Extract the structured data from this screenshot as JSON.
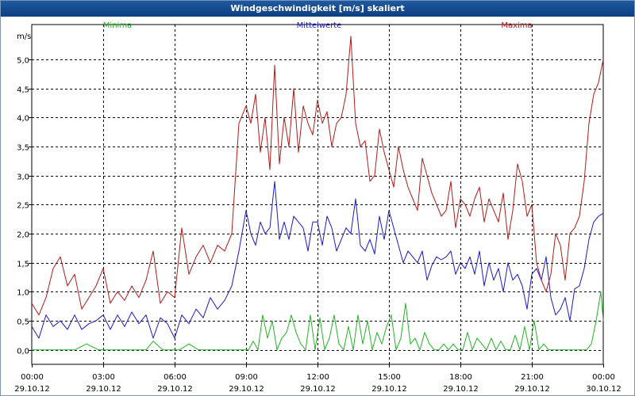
{
  "window": {
    "title": "Windgeschwindigkeit [m/s] skaliert"
  },
  "chart_data": {
    "type": "line",
    "title": "Windgeschwindigkeit [m/s] skaliert",
    "ylabel": "m/s",
    "xlabel": "",
    "ylim": [
      -0.25,
      5.6
    ],
    "xlim": [
      0,
      24
    ],
    "grid": true,
    "y_ticks": [
      {
        "value": 0.0,
        "label": "0,0"
      },
      {
        "value": 0.5,
        "label": "0,5"
      },
      {
        "value": 1.0,
        "label": "1,0"
      },
      {
        "value": 1.5,
        "label": "1,5"
      },
      {
        "value": 2.0,
        "label": "2,0"
      },
      {
        "value": 2.5,
        "label": "2,5"
      },
      {
        "value": 3.0,
        "label": "3,0"
      },
      {
        "value": 3.5,
        "label": "3,5"
      },
      {
        "value": 4.0,
        "label": "4,0"
      },
      {
        "value": 4.5,
        "label": "4,5"
      },
      {
        "value": 5.0,
        "label": "5,0"
      }
    ],
    "x_ticks": [
      {
        "value": 0,
        "time": "00:00",
        "date": "29.10.12"
      },
      {
        "value": 3,
        "time": "03:00",
        "date": "29.10.12"
      },
      {
        "value": 6,
        "time": "06:00",
        "date": "29.10.12"
      },
      {
        "value": 9,
        "time": "09:00",
        "date": "29.10.12"
      },
      {
        "value": 12,
        "time": "12:00",
        "date": "29.10.12"
      },
      {
        "value": 15,
        "time": "15:00",
        "date": "29.10.12"
      },
      {
        "value": 18,
        "time": "18:00",
        "date": "29.10.12"
      },
      {
        "value": 21,
        "time": "21:00",
        "date": "29.10.12"
      },
      {
        "value": 24,
        "time": "00:00",
        "date": "30.10.12"
      }
    ],
    "series": [
      {
        "name": "Minima",
        "color": "#22b422",
        "x": [
          0,
          0.6,
          1.2,
          1.8,
          2.3,
          2.8,
          3.3,
          3.8,
          4.3,
          4.8,
          5.1,
          5.5,
          5.9,
          6.2,
          6.6,
          7.0,
          7.5,
          8.0,
          8.5,
          8.8,
          9.0,
          9.1,
          9.3,
          9.5,
          9.7,
          9.9,
          10.1,
          10.3,
          10.5,
          10.7,
          10.9,
          11.1,
          11.3,
          11.5,
          11.7,
          11.9,
          12.1,
          12.3,
          12.5,
          12.7,
          12.9,
          13.1,
          13.3,
          13.5,
          13.7,
          13.9,
          14.1,
          14.3,
          14.5,
          14.7,
          14.9,
          15.1,
          15.3,
          15.5,
          15.7,
          15.9,
          16.1,
          16.3,
          16.5,
          16.7,
          16.9,
          17.1,
          17.3,
          17.5,
          17.7,
          17.9,
          18.1,
          18.3,
          18.5,
          18.7,
          18.9,
          19.1,
          19.3,
          19.5,
          19.7,
          19.9,
          20.1,
          20.3,
          20.5,
          20.7,
          20.9,
          21.1,
          21.3,
          21.5,
          21.7,
          21.9,
          22.1,
          22.3,
          22.5,
          22.7,
          22.9,
          23.1,
          23.3,
          23.5,
          23.7,
          23.9,
          24.0
        ],
        "values": [
          0.0,
          0.0,
          0.0,
          0.0,
          0.1,
          0.0,
          0.0,
          0.0,
          0.0,
          0.0,
          0.15,
          0.0,
          0.0,
          0.0,
          0.1,
          0.0,
          0.0,
          0.0,
          0.0,
          0.0,
          0.0,
          0.0,
          0.15,
          0.0,
          0.6,
          0.2,
          0.5,
          0.0,
          0.2,
          0.3,
          0.6,
          0.3,
          0.1,
          0.0,
          0.6,
          0.0,
          0.55,
          0.0,
          0.2,
          0.6,
          0.1,
          0.0,
          0.4,
          0.0,
          0.6,
          0.1,
          0.5,
          0.0,
          0.3,
          0.1,
          0.4,
          0.6,
          0.0,
          0.2,
          0.8,
          0.1,
          0.2,
          0.0,
          0.3,
          0.1,
          0.0,
          0.0,
          0.1,
          0.0,
          0.1,
          0.0,
          0.0,
          0.3,
          0.0,
          0.2,
          0.1,
          0.0,
          0.2,
          0.0,
          0.15,
          0.0,
          0.0,
          0.25,
          0.0,
          0.4,
          0.0,
          0.5,
          0.0,
          0.1,
          0.0,
          0.0,
          0.0,
          0.0,
          0.0,
          0.0,
          0.0,
          0.0,
          0.0,
          0.1,
          0.5,
          1.0,
          0.5
        ]
      },
      {
        "name": "Mittelwerte",
        "color": "#1a1acc",
        "x": [
          0,
          0.3,
          0.6,
          0.9,
          1.2,
          1.5,
          1.8,
          2.1,
          2.4,
          2.7,
          3.0,
          3.3,
          3.6,
          3.9,
          4.2,
          4.5,
          4.8,
          5.1,
          5.4,
          5.7,
          6.0,
          6.3,
          6.6,
          6.9,
          7.2,
          7.5,
          7.8,
          8.1,
          8.4,
          8.7,
          9.0,
          9.2,
          9.4,
          9.6,
          9.8,
          10.0,
          10.2,
          10.4,
          10.6,
          10.8,
          11.0,
          11.2,
          11.4,
          11.6,
          11.8,
          12.0,
          12.2,
          12.4,
          12.6,
          12.8,
          13.0,
          13.2,
          13.4,
          13.6,
          13.8,
          14.0,
          14.2,
          14.4,
          14.6,
          14.8,
          15.0,
          15.2,
          15.4,
          15.6,
          15.8,
          16.0,
          16.2,
          16.4,
          16.6,
          16.8,
          17.0,
          17.2,
          17.4,
          17.6,
          17.8,
          18.0,
          18.2,
          18.4,
          18.6,
          18.8,
          19.0,
          19.2,
          19.4,
          19.6,
          19.8,
          20.0,
          20.2,
          20.4,
          20.6,
          20.8,
          21.0,
          21.2,
          21.4,
          21.6,
          21.8,
          22.0,
          22.2,
          22.4,
          22.6,
          22.8,
          23.0,
          23.2,
          23.4,
          23.6,
          23.8,
          24.0
        ],
        "values": [
          0.4,
          0.2,
          0.6,
          0.4,
          0.5,
          0.35,
          0.6,
          0.35,
          0.45,
          0.5,
          0.6,
          0.35,
          0.6,
          0.4,
          0.65,
          0.45,
          0.6,
          0.2,
          0.55,
          0.45,
          0.2,
          0.6,
          0.45,
          0.7,
          0.55,
          0.9,
          0.7,
          0.85,
          1.1,
          1.7,
          2.4,
          2.0,
          1.8,
          2.2,
          2.0,
          2.1,
          2.9,
          1.9,
          2.2,
          1.9,
          2.3,
          2.2,
          2.1,
          1.7,
          2.2,
          2.2,
          1.8,
          2.3,
          2.1,
          1.7,
          1.9,
          2.1,
          2.0,
          2.6,
          1.8,
          1.7,
          1.9,
          1.65,
          2.3,
          1.9,
          2.4,
          2.1,
          1.8,
          1.5,
          1.7,
          1.6,
          1.5,
          1.7,
          1.2,
          1.45,
          1.6,
          1.55,
          1.6,
          1.7,
          1.3,
          1.5,
          1.4,
          1.6,
          1.3,
          1.7,
          1.1,
          1.5,
          1.2,
          1.4,
          1.0,
          1.5,
          1.2,
          1.3,
          1.1,
          0.7,
          1.3,
          1.4,
          1.2,
          1.6,
          0.9,
          0.6,
          0.7,
          0.9,
          0.5,
          1.05,
          1.1,
          1.4,
          1.9,
          2.2,
          2.3,
          2.35
        ]
      },
      {
        "name": "Maxima",
        "color": "#b41a1a",
        "x": [
          0,
          0.3,
          0.6,
          0.9,
          1.2,
          1.5,
          1.8,
          2.1,
          2.4,
          2.7,
          3.0,
          3.3,
          3.6,
          3.9,
          4.2,
          4.5,
          4.8,
          5.1,
          5.4,
          5.7,
          6.0,
          6.3,
          6.6,
          6.9,
          7.2,
          7.5,
          7.8,
          8.1,
          8.4,
          8.7,
          9.0,
          9.2,
          9.4,
          9.6,
          9.8,
          10.0,
          10.2,
          10.4,
          10.6,
          10.8,
          11.0,
          11.2,
          11.4,
          11.6,
          11.8,
          12.0,
          12.2,
          12.4,
          12.6,
          12.8,
          13.0,
          13.2,
          13.4,
          13.6,
          13.8,
          14.0,
          14.2,
          14.4,
          14.6,
          14.8,
          15.0,
          15.2,
          15.4,
          15.6,
          15.8,
          16.0,
          16.2,
          16.4,
          16.6,
          16.8,
          17.0,
          17.2,
          17.4,
          17.6,
          17.8,
          18.0,
          18.2,
          18.4,
          18.6,
          18.8,
          19.0,
          19.2,
          19.4,
          19.6,
          19.8,
          20.0,
          20.2,
          20.4,
          20.6,
          20.8,
          21.0,
          21.2,
          21.4,
          21.6,
          21.8,
          22.0,
          22.2,
          22.4,
          22.6,
          22.8,
          23.0,
          23.2,
          23.4,
          23.6,
          23.8,
          24.0
        ],
        "values": [
          0.8,
          0.6,
          0.9,
          1.4,
          1.6,
          1.1,
          1.3,
          0.7,
          0.9,
          1.1,
          1.4,
          0.8,
          1.0,
          0.85,
          1.1,
          0.9,
          1.2,
          1.7,
          0.8,
          1.0,
          0.9,
          2.1,
          1.3,
          1.6,
          1.8,
          1.5,
          1.8,
          1.7,
          2.0,
          3.9,
          4.2,
          3.9,
          4.4,
          3.4,
          4.0,
          3.1,
          4.9,
          3.2,
          4.0,
          3.5,
          4.5,
          3.4,
          4.2,
          3.9,
          3.7,
          4.3,
          3.9,
          4.1,
          3.5,
          3.9,
          4.0,
          4.4,
          5.4,
          3.9,
          3.5,
          3.6,
          2.9,
          3.0,
          3.8,
          3.4,
          3.1,
          2.8,
          3.5,
          3.1,
          2.8,
          2.6,
          2.4,
          3.3,
          3.0,
          2.7,
          2.5,
          2.3,
          2.4,
          2.9,
          2.1,
          2.6,
          2.5,
          2.3,
          2.6,
          2.8,
          2.2,
          2.6,
          2.4,
          2.2,
          2.7,
          1.9,
          2.4,
          3.2,
          2.9,
          2.3,
          2.5,
          1.5,
          1.2,
          1.0,
          1.3,
          2.0,
          1.8,
          1.2,
          2.0,
          2.1,
          2.3,
          2.9,
          3.9,
          4.4,
          4.6,
          5.0
        ]
      }
    ]
  }
}
